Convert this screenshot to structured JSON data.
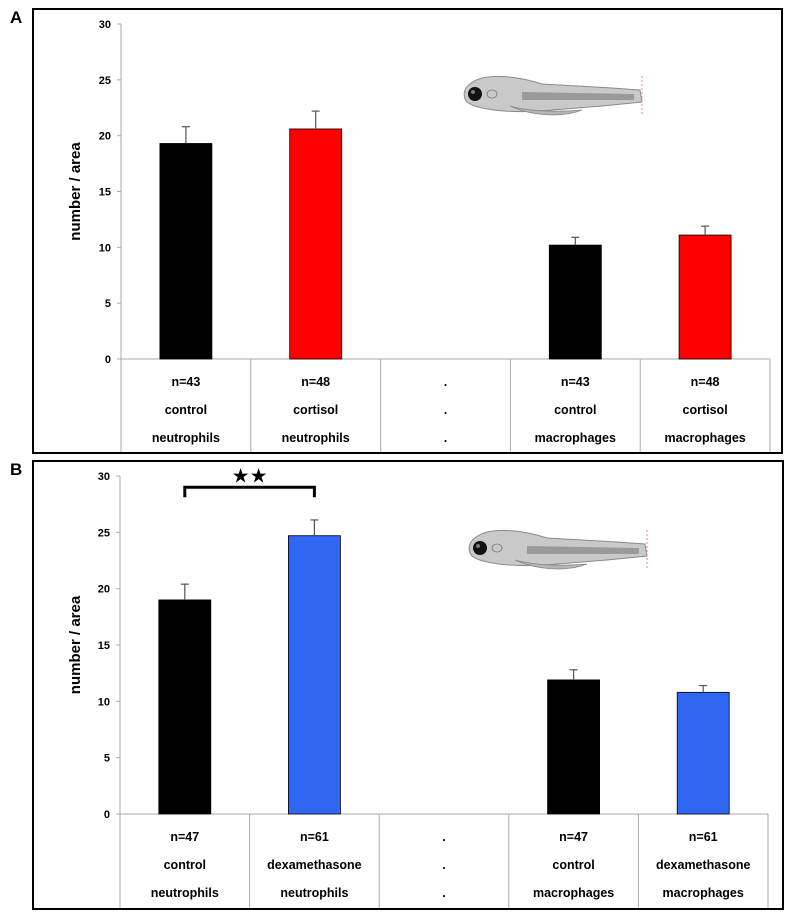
{
  "chart_data": [
    {
      "panel": "A",
      "type": "bar",
      "ylabel": "number / area",
      "ylim": [
        0,
        30
      ],
      "yticks": [
        0,
        5,
        10,
        15,
        20,
        25,
        30
      ],
      "grid": false,
      "colors": {
        "control": "#000000",
        "treatment": "#ff0000"
      },
      "categories": [
        {
          "lines": [
            "n=43",
            "control",
            "neutrophils"
          ],
          "value": 19.3,
          "error": 1.5,
          "color": "#000000"
        },
        {
          "lines": [
            "n=48",
            "cortisol",
            "neutrophils"
          ],
          "value": 20.6,
          "error": 1.6,
          "color": "#ff0000"
        },
        {
          "lines": [
            ".",
            ".",
            "."
          ],
          "value": null,
          "error": null,
          "color": ""
        },
        {
          "lines": [
            "n=43",
            "control",
            "macrophages"
          ],
          "value": 10.2,
          "error": 0.7,
          "color": "#000000"
        },
        {
          "lines": [
            "n=48",
            "cortisol",
            "macrophages"
          ],
          "value": 11.1,
          "error": 0.8,
          "color": "#ff0000"
        }
      ],
      "significance": null
    },
    {
      "panel": "B",
      "type": "bar",
      "ylabel": "number / area",
      "ylim": [
        0,
        30
      ],
      "yticks": [
        0,
        5,
        10,
        15,
        20,
        25,
        30
      ],
      "grid": false,
      "colors": {
        "control": "#000000",
        "treatment": "#2f66f2"
      },
      "categories": [
        {
          "lines": [
            "n=47",
            "control",
            "neutrophils"
          ],
          "value": 19.0,
          "error": 1.4,
          "color": "#000000"
        },
        {
          "lines": [
            "n=61",
            "dexamethasone",
            "neutrophils"
          ],
          "value": 24.7,
          "error": 1.4,
          "color": "#2f66f2"
        },
        {
          "lines": [
            ".",
            ".",
            "."
          ],
          "value": null,
          "error": null,
          "color": ""
        },
        {
          "lines": [
            "n=47",
            "control",
            "macrophages"
          ],
          "value": 11.9,
          "error": 0.9,
          "color": "#000000"
        },
        {
          "lines": [
            "n=61",
            "dexamethasone",
            "macrophages"
          ],
          "value": 10.8,
          "error": 0.6,
          "color": "#2f66f2"
        }
      ],
      "significance": {
        "from": 0,
        "to": 1,
        "label": "★★",
        "level": 29
      }
    }
  ]
}
